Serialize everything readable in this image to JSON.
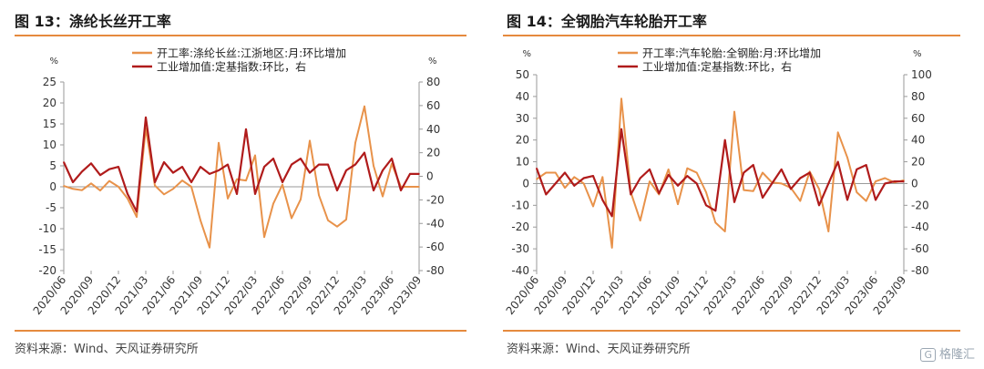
{
  "panels": [
    {
      "title": "图 13：涤纶长丝开工率",
      "source": "资料来源：Wind、天风证券研究所"
    },
    {
      "title": "图 14：全钢胎汽车轮胎开工率",
      "source": "资料来源：Wind、天风证券研究所"
    }
  ],
  "watermark": {
    "badge": "G",
    "text": "格隆汇"
  },
  "colors": {
    "accent": "#e58a3e",
    "orange_series": "#e8924a",
    "red_series": "#b01b1b",
    "axis": "#9a9a9a"
  },
  "chart_data": [
    {
      "type": "line",
      "unit_left": "%",
      "unit_right": "%",
      "ylim_left": [
        -20,
        25
      ],
      "yticks_left": [
        25,
        20,
        15,
        10,
        5,
        0,
        -5,
        -10,
        -15,
        -20
      ],
      "ylim_right": [
        -80,
        80
      ],
      "yticks_right": [
        80,
        60,
        40,
        20,
        0,
        -20,
        -40,
        -60,
        -80
      ],
      "xtick_labels": [
        "2020/06",
        "2020/09",
        "2020/12",
        "2021/03",
        "2021/06",
        "2021/09",
        "2021/12",
        "2022/03",
        "2022/06",
        "2022/09",
        "2022/12",
        "2023/03",
        "2023/06",
        "2023/09"
      ],
      "x": [
        "2020/06",
        "2020/07",
        "2020/08",
        "2020/09",
        "2020/10",
        "2020/11",
        "2020/12",
        "2021/01",
        "2021/02",
        "2021/03",
        "2021/04",
        "2021/05",
        "2021/06",
        "2021/07",
        "2021/08",
        "2021/09",
        "2021/10",
        "2021/11",
        "2021/12",
        "2022/01",
        "2022/02",
        "2022/03",
        "2022/04",
        "2022/05",
        "2022/06",
        "2022/07",
        "2022/08",
        "2022/09",
        "2022/10",
        "2022/11",
        "2022/12",
        "2023/01",
        "2023/02",
        "2023/03",
        "2023/04",
        "2023/05",
        "2023/06",
        "2023/07",
        "2023/08",
        "2023/09"
      ],
      "legend": [
        "开工率:涤纶长丝:江浙地区:月:环比增加",
        "工业增加值:定基指数:环比，右"
      ],
      "series": [
        {
          "name": "开工率:涤纶长丝:江浙地区:月:环比增加",
          "axis": "left",
          "color": "#e8924a",
          "values": [
            0.2,
            -0.5,
            -0.8,
            0.8,
            -0.9,
            1.4,
            0,
            -2.8,
            -7.2,
            14,
            0.3,
            -1.8,
            -0.5,
            1.5,
            0,
            -8,
            -14.5,
            10.5,
            -2.8,
            1.8,
            1.5,
            7.5,
            -12,
            -4,
            0.5,
            -7.5,
            -3,
            11,
            -2,
            -8,
            -9.5,
            -7.8,
            10.5,
            19.2,
            5,
            -2.3,
            5.5,
            0,
            0,
            0
          ]
        },
        {
          "name": "工业增加值:定基指数:环比，右",
          "axis": "right",
          "color": "#b01b1b",
          "values": [
            12,
            -5,
            4,
            11,
            1,
            6,
            8,
            -15,
            -30,
            50,
            -5,
            12,
            3,
            8,
            -5,
            8,
            2,
            5,
            10,
            -15,
            40,
            -15,
            8,
            15,
            -5,
            10,
            15,
            3,
            10,
            10,
            -12,
            5,
            10,
            20,
            -12,
            5,
            15,
            -12,
            2,
            2
          ]
        }
      ]
    },
    {
      "type": "line",
      "unit_left": "%",
      "unit_right": "%",
      "ylim_left": [
        -40,
        50
      ],
      "yticks_left": [
        50,
        40,
        30,
        20,
        10,
        0,
        -10,
        -20,
        -30,
        -40
      ],
      "ylim_right": [
        -80,
        100
      ],
      "yticks_right": [
        100,
        80,
        60,
        40,
        20,
        0,
        -20,
        -40,
        -60,
        -80
      ],
      "xtick_labels": [
        "2020/06",
        "2020/09",
        "2020/12",
        "2021/03",
        "2021/06",
        "2021/09",
        "2021/12",
        "2022/03",
        "2022/06",
        "2022/09",
        "2022/12",
        "2023/03",
        "2023/06",
        "2023/09"
      ],
      "x": [
        "2020/06",
        "2020/07",
        "2020/08",
        "2020/09",
        "2020/10",
        "2020/11",
        "2020/12",
        "2021/01",
        "2021/02",
        "2021/03",
        "2021/04",
        "2021/05",
        "2021/06",
        "2021/07",
        "2021/08",
        "2021/09",
        "2021/10",
        "2021/11",
        "2021/12",
        "2022/01",
        "2022/02",
        "2022/03",
        "2022/04",
        "2022/05",
        "2022/06",
        "2022/07",
        "2022/08",
        "2022/09",
        "2022/10",
        "2022/11",
        "2022/12",
        "2023/01",
        "2023/02",
        "2023/03",
        "2023/04",
        "2023/05",
        "2023/06",
        "2023/07",
        "2023/08",
        "2023/09"
      ],
      "legend": [
        "开工率:汽车轮胎:全钢胎:月:环比增加",
        "工业增加值:定基指数:环比，右"
      ],
      "series": [
        {
          "name": "开工率:汽车轮胎:全钢胎:月:环比增加",
          "axis": "left",
          "color": "#e8924a",
          "values": [
            2,
            5,
            5,
            -2,
            3,
            0,
            -10.5,
            3,
            -29.5,
            39,
            -4,
            -17,
            1,
            -5,
            6.5,
            -9.5,
            7,
            5,
            -4,
            -18,
            -22,
            33,
            -3,
            -3.5,
            5,
            0.5,
            0,
            -2,
            -8,
            5.5,
            -2.5,
            -22,
            23.5,
            12,
            -4,
            -8,
            1,
            2.5,
            0.5,
            1.5
          ]
        },
        {
          "name": "工业增加值:定基指数:环比，右",
          "axis": "right",
          "color": "#b01b1b",
          "values": [
            14,
            -10,
            0,
            10,
            -2,
            5,
            7,
            -15,
            -30,
            50,
            -10,
            5,
            13,
            -9,
            8,
            -2,
            7,
            0,
            -20,
            -25,
            40,
            -17,
            10,
            17,
            -13,
            0,
            13,
            -5,
            5,
            10,
            -20,
            0,
            20,
            -15,
            13,
            17,
            -15,
            0,
            2,
            2
          ]
        }
      ]
    }
  ]
}
